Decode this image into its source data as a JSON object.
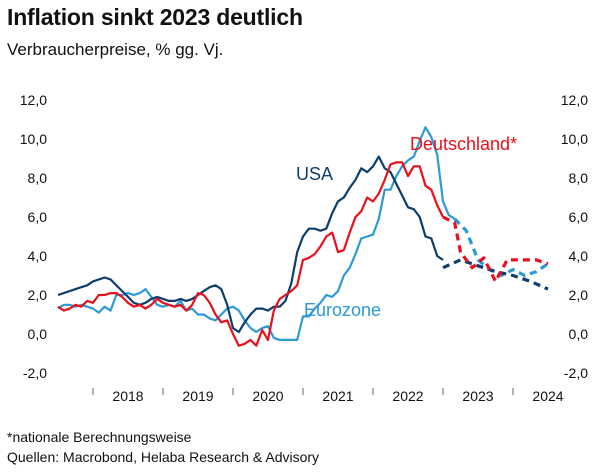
{
  "header": {
    "title": "Inflation sinkt 2023 deutlich",
    "subtitle": "Verbraucherpreise, % gg. Vj."
  },
  "footer": {
    "note": "*nationale Berechnungsweise",
    "sources": "Quellen: Macrobond, Helaba Research & Advisory"
  },
  "colors": {
    "usa": "#0d3e6e",
    "deutschland": "#e8101c",
    "eurozone": "#2c9ad6"
  },
  "chart_data": {
    "type": "line",
    "title": "Inflation sinkt 2023 deutlich",
    "subtitle": "Verbraucherpreise, % gg. Vj.",
    "ylim": [
      -2,
      12
    ],
    "y_ticks": [
      "12,0",
      "10,0",
      "8,0",
      "6,0",
      "4,0",
      "2,0",
      "0,0",
      "-2,0"
    ],
    "y_tick_values": [
      12,
      10,
      8,
      6,
      4,
      2,
      0,
      -2
    ],
    "x_range": [
      "2017-07",
      "2024-07"
    ],
    "x_tick_labels": [
      "2018",
      "2019",
      "2020",
      "2021",
      "2022",
      "2023",
      "2024"
    ],
    "grid": false,
    "series": [
      {
        "name": "USA",
        "label_text": "USA",
        "style": "solid",
        "values": [
          [
            "2017-07",
            2.0
          ],
          [
            "2017-09",
            2.2
          ],
          [
            "2017-11",
            2.4
          ],
          [
            "2017-12",
            2.5
          ],
          [
            "2018-01",
            2.7
          ],
          [
            "2018-02",
            2.8
          ],
          [
            "2018-03",
            2.9
          ],
          [
            "2018-04",
            2.8
          ],
          [
            "2018-05",
            2.5
          ],
          [
            "2018-06",
            2.2
          ],
          [
            "2018-07",
            1.9
          ],
          [
            "2018-08",
            1.6
          ],
          [
            "2018-09",
            1.5
          ],
          [
            "2018-10",
            1.6
          ],
          [
            "2018-11",
            1.8
          ],
          [
            "2018-12",
            1.9
          ],
          [
            "2019-01",
            1.8
          ],
          [
            "2019-02",
            1.7
          ],
          [
            "2019-03",
            1.7
          ],
          [
            "2019-04",
            1.8
          ],
          [
            "2019-05",
            1.7
          ],
          [
            "2019-06",
            1.8
          ],
          [
            "2019-07",
            2.0
          ],
          [
            "2019-08",
            2.2
          ],
          [
            "2019-09",
            2.4
          ],
          [
            "2019-10",
            2.5
          ],
          [
            "2019-11",
            2.3
          ],
          [
            "2019-12",
            1.5
          ],
          [
            "2020-01",
            0.3
          ],
          [
            "2020-02",
            0.1
          ],
          [
            "2020-03",
            0.6
          ],
          [
            "2020-04",
            1.0
          ],
          [
            "2020-05",
            1.3
          ],
          [
            "2020-06",
            1.3
          ],
          [
            "2020-07",
            1.2
          ],
          [
            "2020-08",
            1.4
          ],
          [
            "2020-09",
            1.4
          ],
          [
            "2020-10",
            1.7
          ],
          [
            "2020-11",
            2.6
          ],
          [
            "2020-12",
            4.2
          ],
          [
            "2021-01",
            5.0
          ],
          [
            "2021-02",
            5.4
          ],
          [
            "2021-03",
            5.4
          ],
          [
            "2021-04",
            5.3
          ],
          [
            "2021-05",
            5.4
          ],
          [
            "2021-06",
            6.2
          ],
          [
            "2021-07",
            6.8
          ],
          [
            "2021-08",
            7.0
          ],
          [
            "2021-09",
            7.5
          ],
          [
            "2021-10",
            7.9
          ],
          [
            "2021-11",
            8.5
          ],
          [
            "2021-12",
            8.3
          ],
          [
            "2022-01",
            8.6
          ],
          [
            "2022-02",
            9.1
          ],
          [
            "2022-03",
            8.5
          ],
          [
            "2022-04",
            8.3
          ],
          [
            "2022-05",
            7.7
          ],
          [
            "2022-06",
            7.1
          ],
          [
            "2022-07",
            6.5
          ],
          [
            "2022-08",
            6.4
          ],
          [
            "2022-09",
            6.0
          ],
          [
            "2022-10",
            5.0
          ],
          [
            "2022-11",
            4.9
          ],
          [
            "2022-12",
            4.0
          ],
          [
            "2023-01",
            3.8
          ]
        ]
      },
      {
        "name": "USA Prognose",
        "style": "dashed",
        "values": [
          [
            "2023-01",
            3.4
          ],
          [
            "2023-04",
            3.8
          ],
          [
            "2023-07",
            3.5
          ],
          [
            "2023-10",
            3.2
          ],
          [
            "2024-01",
            3.0
          ],
          [
            "2024-04",
            2.7
          ],
          [
            "2024-07",
            2.3
          ]
        ]
      },
      {
        "name": "Deutschland*",
        "label_text": "Deutschland*",
        "style": "solid",
        "values": [
          [
            "2017-07",
            1.4
          ],
          [
            "2017-08",
            1.2
          ],
          [
            "2017-09",
            1.3
          ],
          [
            "2017-10",
            1.5
          ],
          [
            "2017-11",
            1.4
          ],
          [
            "2017-12",
            1.7
          ],
          [
            "2018-01",
            1.6
          ],
          [
            "2018-02",
            2.0
          ],
          [
            "2018-03",
            2.0
          ],
          [
            "2018-04",
            2.1
          ],
          [
            "2018-05",
            2.1
          ],
          [
            "2018-06",
            1.9
          ],
          [
            "2018-07",
            1.6
          ],
          [
            "2018-08",
            1.4
          ],
          [
            "2018-09",
            1.5
          ],
          [
            "2018-10",
            1.3
          ],
          [
            "2018-11",
            1.5
          ],
          [
            "2018-12",
            1.8
          ],
          [
            "2019-01",
            1.6
          ],
          [
            "2019-02",
            1.5
          ],
          [
            "2019-03",
            1.4
          ],
          [
            "2019-04",
            1.5
          ],
          [
            "2019-05",
            1.2
          ],
          [
            "2019-06",
            1.5
          ],
          [
            "2019-07",
            2.1
          ],
          [
            "2019-08",
            2.0
          ],
          [
            "2019-09",
            1.6
          ],
          [
            "2019-10",
            1.0
          ],
          [
            "2019-11",
            0.6
          ],
          [
            "2019-12",
            0.7
          ],
          [
            "2020-01",
            0.0
          ],
          [
            "2020-02",
            -0.6
          ],
          [
            "2020-03",
            -0.5
          ],
          [
            "2020-04",
            -0.3
          ],
          [
            "2020-05",
            -0.6
          ],
          [
            "2020-06",
            0.2
          ],
          [
            "2020-07",
            -0.3
          ],
          [
            "2020-08",
            1.2
          ],
          [
            "2020-09",
            1.8
          ],
          [
            "2020-10",
            2.0
          ],
          [
            "2020-11",
            2.2
          ],
          [
            "2020-12",
            2.5
          ],
          [
            "2021-01",
            3.8
          ],
          [
            "2021-02",
            3.9
          ],
          [
            "2021-03",
            4.1
          ],
          [
            "2021-04",
            4.5
          ],
          [
            "2021-05",
            5.0
          ],
          [
            "2021-06",
            5.2
          ],
          [
            "2021-07",
            4.2
          ],
          [
            "2021-08",
            4.3
          ],
          [
            "2021-09",
            5.2
          ],
          [
            "2021-10",
            6.0
          ],
          [
            "2021-11",
            6.3
          ],
          [
            "2021-12",
            7.0
          ],
          [
            "2022-01",
            6.8
          ],
          [
            "2022-02",
            7.2
          ],
          [
            "2022-03",
            7.9
          ],
          [
            "2022-04",
            8.7
          ],
          [
            "2022-05",
            8.8
          ],
          [
            "2022-06",
            8.8
          ],
          [
            "2022-07",
            8.1
          ],
          [
            "2022-08",
            8.6
          ],
          [
            "2022-09",
            8.6
          ],
          [
            "2022-10",
            7.6
          ],
          [
            "2022-11",
            7.4
          ],
          [
            "2022-12",
            6.6
          ],
          [
            "2023-01",
            6.0
          ]
        ]
      },
      {
        "name": "Deutschland* Prognose",
        "style": "dashed",
        "values": [
          [
            "2023-01",
            6.0
          ],
          [
            "2023-03",
            5.7
          ],
          [
            "2023-04",
            4.2
          ],
          [
            "2023-06",
            3.4
          ],
          [
            "2023-08",
            3.9
          ],
          [
            "2023-10",
            2.7
          ],
          [
            "2023-12",
            3.8
          ],
          [
            "2024-03",
            3.8
          ],
          [
            "2024-05",
            3.8
          ],
          [
            "2024-07",
            3.6
          ]
        ]
      },
      {
        "name": "Eurozone",
        "label_text": "Eurozone",
        "style": "solid",
        "values": [
          [
            "2017-07",
            1.3
          ],
          [
            "2017-08",
            1.5
          ],
          [
            "2017-09",
            1.5
          ],
          [
            "2017-10",
            1.4
          ],
          [
            "2017-11",
            1.5
          ],
          [
            "2017-12",
            1.4
          ],
          [
            "2018-01",
            1.3
          ],
          [
            "2018-02",
            1.1
          ],
          [
            "2018-03",
            1.4
          ],
          [
            "2018-04",
            1.2
          ],
          [
            "2018-05",
            2.0
          ],
          [
            "2018-06",
            2.0
          ],
          [
            "2018-07",
            2.1
          ],
          [
            "2018-08",
            2.0
          ],
          [
            "2018-09",
            2.1
          ],
          [
            "2018-10",
            2.3
          ],
          [
            "2018-11",
            1.9
          ],
          [
            "2018-12",
            1.5
          ],
          [
            "2019-01",
            1.4
          ],
          [
            "2019-02",
            1.5
          ],
          [
            "2019-03",
            1.4
          ],
          [
            "2019-04",
            1.7
          ],
          [
            "2019-05",
            1.2
          ],
          [
            "2019-06",
            1.3
          ],
          [
            "2019-07",
            1.0
          ],
          [
            "2019-08",
            1.0
          ],
          [
            "2019-09",
            0.8
          ],
          [
            "2019-10",
            0.7
          ],
          [
            "2019-11",
            1.0
          ],
          [
            "2019-12",
            1.3
          ],
          [
            "2020-01",
            1.4
          ],
          [
            "2020-02",
            1.2
          ],
          [
            "2020-03",
            0.7
          ],
          [
            "2020-04",
            0.3
          ],
          [
            "2020-05",
            0.1
          ],
          [
            "2020-06",
            0.3
          ],
          [
            "2020-07",
            0.4
          ],
          [
            "2020-08",
            -0.2
          ],
          [
            "2020-09",
            -0.3
          ],
          [
            "2020-10",
            -0.3
          ],
          [
            "2020-11",
            -0.3
          ],
          [
            "2020-12",
            -0.3
          ],
          [
            "2021-01",
            0.9
          ],
          [
            "2021-02",
            0.9
          ],
          [
            "2021-03",
            1.3
          ],
          [
            "2021-04",
            1.6
          ],
          [
            "2021-05",
            2.0
          ],
          [
            "2021-06",
            1.9
          ],
          [
            "2021-07",
            2.2
          ],
          [
            "2021-08",
            3.0
          ],
          [
            "2021-09",
            3.4
          ],
          [
            "2021-10",
            4.1
          ],
          [
            "2021-11",
            4.9
          ],
          [
            "2021-12",
            5.0
          ],
          [
            "2022-01",
            5.1
          ],
          [
            "2022-02",
            5.9
          ],
          [
            "2022-03",
            7.4
          ],
          [
            "2022-04",
            7.4
          ],
          [
            "2022-05",
            8.1
          ],
          [
            "2022-06",
            8.6
          ],
          [
            "2022-07",
            8.9
          ],
          [
            "2022-08",
            9.1
          ],
          [
            "2022-09",
            9.9
          ],
          [
            "2022-10",
            10.6
          ],
          [
            "2022-11",
            10.1
          ],
          [
            "2022-12",
            9.2
          ],
          [
            "2023-01",
            6.8
          ],
          [
            "2023-02",
            6.1
          ],
          [
            "2023-03",
            5.9
          ]
        ]
      },
      {
        "name": "Eurozone Prognose",
        "style": "dashed",
        "values": [
          [
            "2023-03",
            5.9
          ],
          [
            "2023-05",
            5.3
          ],
          [
            "2023-07",
            3.8
          ],
          [
            "2023-09",
            3.3
          ],
          [
            "2023-11",
            3.0
          ],
          [
            "2024-01",
            3.3
          ],
          [
            "2024-03",
            3.0
          ],
          [
            "2024-05",
            3.2
          ],
          [
            "2024-07",
            3.6
          ]
        ]
      }
    ]
  }
}
